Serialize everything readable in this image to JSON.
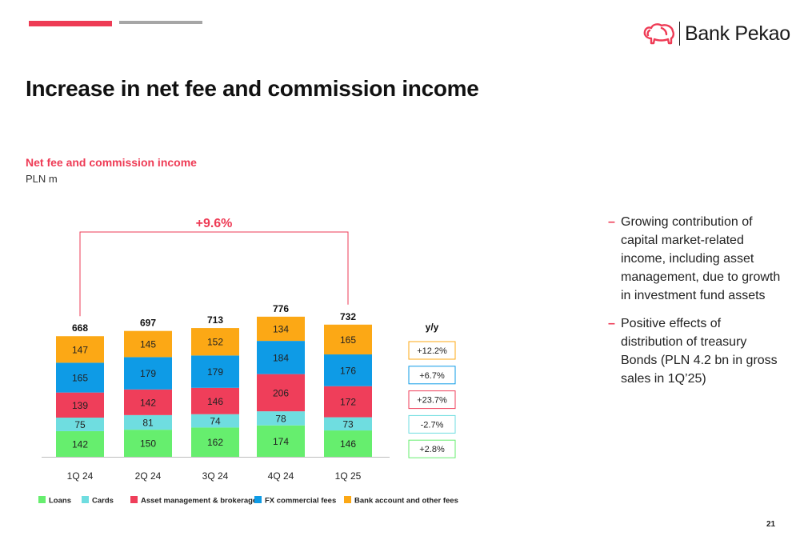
{
  "header": {
    "brand_name": "Bank Pekao",
    "title": "Increase in net fee and commission income"
  },
  "colors": {
    "accent_red": "#ee3b55",
    "accent_grey": "#a6a6a6"
  },
  "chart_data": {
    "type": "bar",
    "stacked": true,
    "title": "Net fee and commission income",
    "subtitle": "PLN m",
    "categories": [
      "1Q 24",
      "2Q 24",
      "3Q 24",
      "4Q 24",
      "1Q 25"
    ],
    "totals": [
      668,
      697,
      713,
      776,
      732
    ],
    "series": [
      {
        "name": "Loans",
        "color": "#66ee6e",
        "values": [
          142,
          150,
          162,
          174,
          146
        ]
      },
      {
        "name": "Cards",
        "color": "#6fdde0",
        "values": [
          75,
          81,
          74,
          78,
          73
        ]
      },
      {
        "name": "Asset management & brokerage",
        "color": "#ef3e5a",
        "values": [
          139,
          142,
          146,
          206,
          172
        ]
      },
      {
        "name": "FX commercial fees",
        "color": "#0e9be6",
        "values": [
          165,
          179,
          179,
          184,
          176
        ]
      },
      {
        "name": "Bank account and other fees",
        "color": "#fca815",
        "values": [
          147,
          145,
          152,
          134,
          165
        ]
      }
    ],
    "growth_annotation": {
      "label": "+9.6%",
      "from": "1Q 24",
      "to": "1Q 25"
    },
    "yy": {
      "header": "y/y",
      "values": [
        "+12.2%",
        "+6.7%",
        "+23.7%",
        "-2.7%",
        "+2.8%"
      ],
      "series_order": [
        "Bank account and other fees",
        "FX commercial fees",
        "Asset management & brokerage",
        "Cards",
        "Loans"
      ]
    },
    "legend_position": "bottom",
    "grid": false
  },
  "bullets": [
    "Growing contribution of capital market-related income, including asset management, due to growth in investment fund assets",
    "Positive effects of distribution of treasury Bonds (PLN 4.2 bn in gross sales in 1Q’25)"
  ],
  "bullet_marker": "–",
  "page_number": "21"
}
